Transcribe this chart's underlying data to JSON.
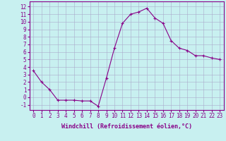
{
  "x": [
    0,
    1,
    2,
    3,
    4,
    5,
    6,
    7,
    8,
    9,
    10,
    11,
    12,
    13,
    14,
    15,
    16,
    17,
    18,
    19,
    20,
    21,
    22,
    23
  ],
  "y": [
    3.5,
    2.0,
    1.0,
    -0.4,
    -0.4,
    -0.4,
    -0.5,
    -0.5,
    -1.2,
    2.5,
    6.5,
    9.8,
    11.0,
    11.3,
    11.8,
    10.5,
    9.8,
    7.5,
    6.5,
    6.2,
    5.5,
    5.5,
    5.2,
    5.0
  ],
  "line_color": "#880088",
  "marker": "+",
  "bg_color": "#c8f0f0",
  "grid_color": "#aaaacc",
  "xlabel": "Windchill (Refroidissement éolien,°C)",
  "xlabel_color": "#880088",
  "tick_color": "#880088",
  "ylabel_ticks": [
    -1,
    0,
    1,
    2,
    3,
    4,
    5,
    6,
    7,
    8,
    9,
    10,
    11,
    12
  ],
  "xlim": [
    -0.5,
    23.5
  ],
  "ylim": [
    -1.7,
    12.7
  ],
  "tick_fontsize": 5.5,
  "xlabel_fontsize": 6.0
}
